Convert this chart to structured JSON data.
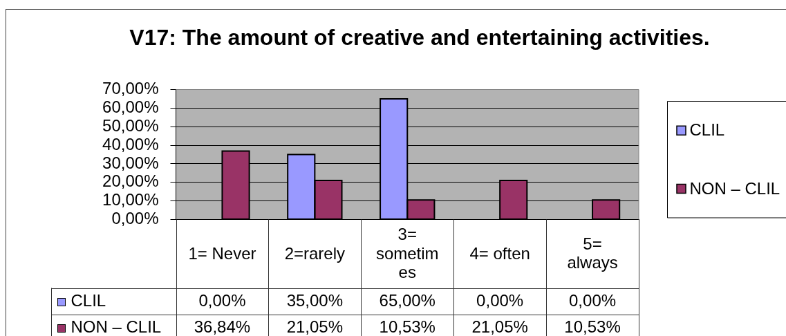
{
  "chart_data": {
    "type": "bar",
    "title": "V17: The amount of creative and entertaining activities.",
    "categories": [
      "1= Never",
      "2=rarely",
      "3= sometimes",
      "4= often",
      "5= always"
    ],
    "series": [
      {
        "name": "CLIL",
        "color": "#9999ff",
        "values": [
          0,
          35,
          65,
          0,
          0
        ],
        "value_labels": [
          "0,00%",
          "35,00%",
          "65,00%",
          "0,00%",
          "0,00%"
        ]
      },
      {
        "name": "NON – CLIL",
        "color": "#993366",
        "values": [
          36.84,
          21.05,
          10.53,
          21.05,
          10.53
        ],
        "value_labels": [
          "36,84%",
          "21,05%",
          "10,53%",
          "21,05%",
          "10,53%"
        ]
      }
    ],
    "ylim": [
      0,
      70
    ],
    "yticks": [
      {
        "value": 0,
        "label": "0,00%"
      },
      {
        "value": 10,
        "label": "10,00%"
      },
      {
        "value": 20,
        "label": "20,00%"
      },
      {
        "value": 30,
        "label": "30,00%"
      },
      {
        "value": 40,
        "label": "40,00%"
      },
      {
        "value": 50,
        "label": "50,00%"
      },
      {
        "value": 60,
        "label": "60,00%"
      },
      {
        "value": 70,
        "label": "70,00%"
      }
    ],
    "grid": "y",
    "legend": "right"
  }
}
